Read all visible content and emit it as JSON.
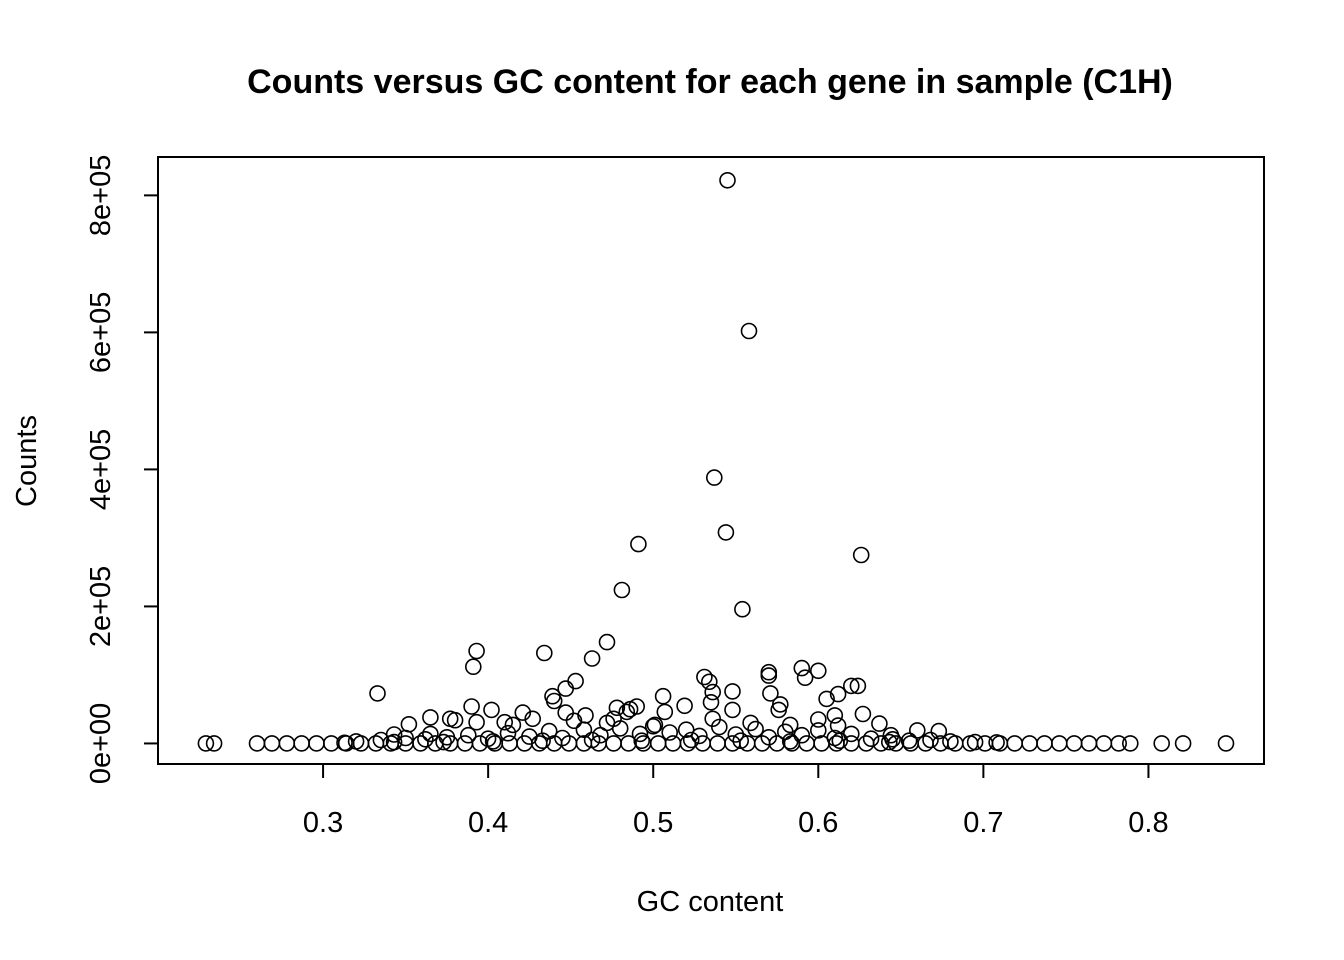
{
  "chart_data": {
    "type": "scatter",
    "title": "Counts versus GC content for each gene in sample (C1H)",
    "xlabel": "GC content",
    "ylabel": "Counts",
    "xlim": [
      0.2,
      0.87
    ],
    "ylim": [
      -30000,
      856000
    ],
    "x_ticks": [
      0.3,
      0.4,
      0.5,
      0.6,
      0.7,
      0.8
    ],
    "x_tick_labels": [
      "0.3",
      "0.4",
      "0.5",
      "0.6",
      "0.7",
      "0.8"
    ],
    "y_ticks": [
      0,
      200000,
      400000,
      600000,
      800000
    ],
    "y_tick_labels": [
      "0e+00",
      "2e+05",
      "4e+05",
      "6e+05",
      "8e+05"
    ],
    "grid": false,
    "legend": "none",
    "marker": "open-circle",
    "point_color": "#000000",
    "points": [
      [
        0.545,
        822000
      ],
      [
        0.558,
        602000
      ],
      [
        0.537,
        388000
      ],
      [
        0.544,
        308000
      ],
      [
        0.491,
        291000
      ],
      [
        0.626,
        275000
      ],
      [
        0.481,
        224000
      ],
      [
        0.554,
        196000
      ],
      [
        0.472,
        148000
      ],
      [
        0.393,
        135000
      ],
      [
        0.434,
        132000
      ],
      [
        0.463,
        124000
      ],
      [
        0.391,
        112000
      ],
      [
        0.59,
        110000
      ],
      [
        0.6,
        106000
      ],
      [
        0.57,
        104000
      ],
      [
        0.57,
        99000
      ],
      [
        0.531,
        97000
      ],
      [
        0.592,
        96000
      ],
      [
        0.534,
        90000
      ],
      [
        0.453,
        91000
      ],
      [
        0.62,
        84000
      ],
      [
        0.624,
        84000
      ],
      [
        0.447,
        80000
      ],
      [
        0.548,
        76000
      ],
      [
        0.536,
        75000
      ],
      [
        0.333,
        73000
      ],
      [
        0.571,
        73000
      ],
      [
        0.612,
        72000
      ],
      [
        0.439,
        69000
      ],
      [
        0.506,
        69000
      ],
      [
        0.605,
        65000
      ],
      [
        0.44,
        62000
      ],
      [
        0.535,
        60000
      ],
      [
        0.577,
        57000
      ],
      [
        0.519,
        55000
      ],
      [
        0.39,
        54000
      ],
      [
        0.49,
        54000
      ],
      [
        0.478,
        52000
      ],
      [
        0.486,
        50000
      ],
      [
        0.402,
        49000
      ],
      [
        0.548,
        49000
      ],
      [
        0.576,
        49000
      ],
      [
        0.484,
        46000
      ],
      [
        0.507,
        46000
      ],
      [
        0.421,
        45000
      ],
      [
        0.447,
        45000
      ],
      [
        0.627,
        43000
      ],
      [
        0.459,
        41000
      ],
      [
        0.61,
        41000
      ],
      [
        0.365,
        38000
      ],
      [
        0.377,
        36000
      ],
      [
        0.427,
        36000
      ],
      [
        0.476,
        36000
      ],
      [
        0.536,
        36000
      ],
      [
        0.6,
        35000
      ],
      [
        0.38,
        34000
      ],
      [
        0.452,
        33000
      ],
      [
        0.393,
        31000
      ],
      [
        0.41,
        31000
      ],
      [
        0.472,
        30000
      ],
      [
        0.559,
        30000
      ],
      [
        0.637,
        29000
      ],
      [
        0.352,
        28000
      ],
      [
        0.415,
        27000
      ],
      [
        0.501,
        27000
      ],
      [
        0.583,
        27000
      ],
      [
        0.612,
        26000
      ],
      [
        0.673,
        18000
      ],
      [
        0.66,
        19000
      ],
      [
        0.343,
        13000
      ],
      [
        0.365,
        14000
      ],
      [
        0.644,
        12000
      ],
      [
        0.229,
        0
      ],
      [
        0.234,
        0
      ],
      [
        0.26,
        0
      ],
      [
        0.269,
        0
      ],
      [
        0.278,
        0
      ],
      [
        0.287,
        0
      ],
      [
        0.296,
        0
      ],
      [
        0.305,
        0
      ],
      [
        0.314,
        0
      ],
      [
        0.323,
        0
      ],
      [
        0.332,
        0
      ],
      [
        0.341,
        0
      ],
      [
        0.35,
        0
      ],
      [
        0.359,
        0
      ],
      [
        0.368,
        0
      ],
      [
        0.377,
        0
      ],
      [
        0.386,
        0
      ],
      [
        0.395,
        0
      ],
      [
        0.404,
        0
      ],
      [
        0.413,
        0
      ],
      [
        0.422,
        0
      ],
      [
        0.431,
        0
      ],
      [
        0.44,
        0
      ],
      [
        0.449,
        0
      ],
      [
        0.458,
        0
      ],
      [
        0.467,
        0
      ],
      [
        0.476,
        0
      ],
      [
        0.485,
        0
      ],
      [
        0.494,
        0
      ],
      [
        0.503,
        0
      ],
      [
        0.512,
        0
      ],
      [
        0.521,
        0
      ],
      [
        0.53,
        0
      ],
      [
        0.539,
        0
      ],
      [
        0.548,
        0
      ],
      [
        0.557,
        0
      ],
      [
        0.566,
        0
      ],
      [
        0.575,
        0
      ],
      [
        0.584,
        0
      ],
      [
        0.593,
        0
      ],
      [
        0.602,
        0
      ],
      [
        0.611,
        0
      ],
      [
        0.62,
        0
      ],
      [
        0.629,
        0
      ],
      [
        0.638,
        0
      ],
      [
        0.647,
        0
      ],
      [
        0.656,
        0
      ],
      [
        0.665,
        0
      ],
      [
        0.674,
        0
      ],
      [
        0.683,
        0
      ],
      [
        0.692,
        0
      ],
      [
        0.701,
        0
      ],
      [
        0.71,
        0
      ],
      [
        0.719,
        0
      ],
      [
        0.728,
        0
      ],
      [
        0.737,
        0
      ],
      [
        0.746,
        0
      ],
      [
        0.755,
        0
      ],
      [
        0.764,
        0
      ],
      [
        0.773,
        0
      ],
      [
        0.782,
        0
      ],
      [
        0.789,
        0
      ],
      [
        0.808,
        0
      ],
      [
        0.821,
        0
      ],
      [
        0.847,
        0
      ],
      [
        0.32,
        3000
      ],
      [
        0.335,
        5000
      ],
      [
        0.35,
        8000
      ],
      [
        0.362,
        6000
      ],
      [
        0.375,
        9000
      ],
      [
        0.388,
        12000
      ],
      [
        0.4,
        7000
      ],
      [
        0.412,
        15000
      ],
      [
        0.425,
        10000
      ],
      [
        0.437,
        18000
      ],
      [
        0.445,
        8000
      ],
      [
        0.458,
        20000
      ],
      [
        0.468,
        12000
      ],
      [
        0.48,
        22000
      ],
      [
        0.492,
        14000
      ],
      [
        0.5,
        25000
      ],
      [
        0.51,
        16000
      ],
      [
        0.52,
        20000
      ],
      [
        0.528,
        11000
      ],
      [
        0.54,
        24000
      ],
      [
        0.55,
        13000
      ],
      [
        0.562,
        21000
      ],
      [
        0.57,
        9000
      ],
      [
        0.58,
        17000
      ],
      [
        0.59,
        12000
      ],
      [
        0.6,
        19000
      ],
      [
        0.61,
        8000
      ],
      [
        0.62,
        14000
      ],
      [
        0.632,
        7000
      ],
      [
        0.645,
        6000
      ],
      [
        0.655,
        4000
      ],
      [
        0.668,
        5000
      ],
      [
        0.68,
        3000
      ],
      [
        0.695,
        2000
      ],
      [
        0.708,
        1500
      ],
      [
        0.403,
        3000
      ],
      [
        0.433,
        4000
      ],
      [
        0.463,
        5000
      ],
      [
        0.493,
        4000
      ],
      [
        0.523,
        5000
      ],
      [
        0.553,
        4000
      ],
      [
        0.583,
        3000
      ],
      [
        0.613,
        4000
      ],
      [
        0.643,
        2000
      ],
      [
        0.373,
        2000
      ],
      [
        0.343,
        2000
      ],
      [
        0.313,
        1000
      ]
    ]
  }
}
